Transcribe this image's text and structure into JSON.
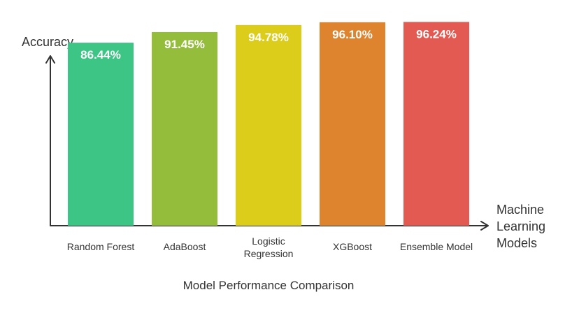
{
  "chart_data": {
    "type": "bar",
    "title": "Model Performance Comparison",
    "ylabel": "Accuracy",
    "xlabel": [
      "Machine",
      "Learning",
      "Models"
    ],
    "categories": [
      [
        "Random Forest"
      ],
      [
        "AdaBoost"
      ],
      [
        "Logistic",
        "Regression"
      ],
      [
        "XGBoost"
      ],
      [
        "Ensemble Model"
      ]
    ],
    "values": [
      86.44,
      91.45,
      94.78,
      96.1,
      96.24
    ],
    "value_labels": [
      "86.44%",
      "91.45%",
      "94.78%",
      "96.10%",
      "96.24%"
    ],
    "colors": [
      "#3DC586",
      "#93BD3A",
      "#DDCD1B",
      "#DE842F",
      "#E35A52"
    ],
    "ylim": [
      0,
      100
    ],
    "grid": false,
    "legend": "none"
  }
}
